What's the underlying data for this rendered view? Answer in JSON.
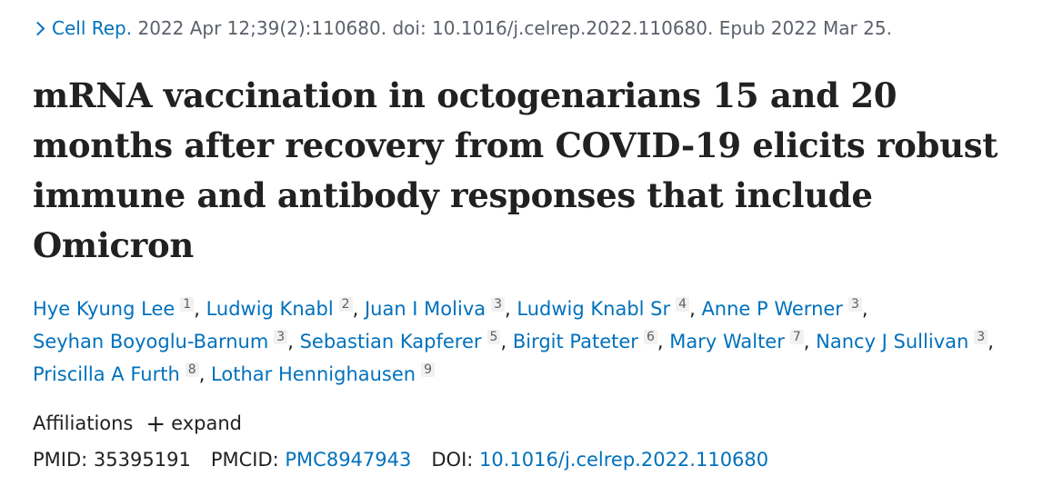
{
  "citation": {
    "journal": "Cell Rep.",
    "details": "2022 Apr 12;39(2):110680. doi: 10.1016/j.celrep.2022.110680. Epub 2022 Mar 25."
  },
  "title": "mRNA vaccination in octogenarians 15 and 20 months after recovery from COVID-19 elicits robust immune and antibody responses that include Omicron",
  "authors": [
    {
      "name": "Hye Kyung Lee",
      "aff": "1"
    },
    {
      "name": "Ludwig Knabl",
      "aff": "2"
    },
    {
      "name": "Juan I Moliva",
      "aff": "3"
    },
    {
      "name": "Ludwig Knabl Sr",
      "aff": "4"
    },
    {
      "name": "Anne P Werner",
      "aff": "3"
    },
    {
      "name": "Seyhan Boyoglu-Barnum",
      "aff": "3"
    },
    {
      "name": "Sebastian Kapferer",
      "aff": "5"
    },
    {
      "name": "Birgit Pateter",
      "aff": "6"
    },
    {
      "name": "Mary Walter",
      "aff": "7"
    },
    {
      "name": "Nancy J Sullivan",
      "aff": "3"
    },
    {
      "name": "Priscilla A Furth",
      "aff": "8"
    },
    {
      "name": "Lothar Hennighausen",
      "aff": "9"
    }
  ],
  "affiliations": {
    "label": "Affiliations",
    "expand_label": "expand"
  },
  "identifiers": {
    "pmid_label": "PMID:",
    "pmid": "35395191",
    "pmcid_label": "PMCID:",
    "pmcid": "PMC8947943",
    "doi_label": "DOI:",
    "doi": "10.1016/j.celrep.2022.110680"
  },
  "colors": {
    "link": "#0071bc",
    "text": "#212121",
    "muted": "#5b616b"
  },
  "icons": {
    "journal_toggle": "chevron-right-icon",
    "expand": "plus-icon"
  }
}
